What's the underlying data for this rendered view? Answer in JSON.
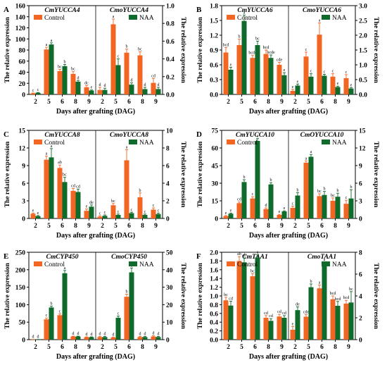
{
  "colors": {
    "control": "#F26522",
    "naa": "#0E6B2B",
    "axis": "#000000"
  },
  "chart_data": [
    {
      "type": "bar",
      "panel_label": "A",
      "gene_left": "CmYUCCA4",
      "gene_right": "CmoYUCCA4",
      "xlabel": "Days after grafting (DAG)",
      "ylabel": "The relative expression",
      "ylabel_right": "The relative expression",
      "legend": [
        "Control",
        "NAA"
      ],
      "categories": [
        "2",
        "5",
        "6",
        "8",
        "9"
      ],
      "ylim_left": [
        0,
        160
      ],
      "yticks_left": [
        "0",
        "20",
        "40",
        "60",
        "80",
        "100",
        "120",
        "140",
        "160"
      ],
      "ylim_right": [
        0,
        1.0
      ],
      "yticks_right": [
        "0.0",
        "0.2",
        "0.4",
        "0.6",
        "0.8",
        "1.0"
      ],
      "series": [
        {
          "name": "Control",
          "left": [
            2,
            81,
            42,
            37,
            13
          ],
          "left_err": [
            0.5,
            4,
            3,
            4,
            3
          ],
          "left_sig": [
            "c",
            "a",
            "bc",
            "bc",
            "dc"
          ],
          "right": [
            0.05,
            0.79,
            0.47,
            0.44,
            0.13
          ],
          "right_err": [
            0.03,
            0.06,
            0.04,
            0.04,
            0.05
          ],
          "right_sig": [
            "d",
            "a",
            "b",
            "bc",
            "cd"
          ]
        },
        {
          "name": "NAA",
          "left": [
            3,
            90,
            51,
            23,
            7
          ],
          "left_err": [
            0.5,
            3,
            3,
            2,
            1
          ],
          "left_sig": [
            "c",
            "a",
            "b",
            "d",
            "e"
          ],
          "right": [
            0.05,
            0.33,
            0.11,
            0.06,
            0.06
          ],
          "right_err": [
            0.02,
            0.07,
            0.02,
            0.02,
            0.02
          ],
          "right_sig": [
            "d",
            "c",
            "d",
            "d",
            "d"
          ]
        }
      ]
    },
    {
      "type": "bar",
      "panel_label": "B",
      "gene_left": "CmYUCCA6",
      "gene_right": "CmoYUCCA6",
      "xlabel": "Days after grafting (DAG)",
      "ylabel": "The relative expression",
      "ylabel_right": "The relative expression",
      "legend": [
        "Control",
        "NAA"
      ],
      "categories": [
        "2",
        "5",
        "6",
        "8",
        "9"
      ],
      "ylim_left": [
        0,
        1.8
      ],
      "yticks_left": [
        "0.0",
        "0.3",
        "0.6",
        "0.9",
        "1.2",
        "1.5",
        "1.8"
      ],
      "ylim_right": [
        0,
        3.0
      ],
      "yticks_right": [
        "0.0",
        "0.5",
        "1.0",
        "1.5",
        "2.0",
        "2.5",
        "3.0"
      ],
      "series": [
        {
          "name": "Control",
          "left": [
            0.85,
            1.0,
            0.74,
            0.82,
            0.6
          ],
          "left_err": [
            0.1,
            0.12,
            0.05,
            0.08,
            0.05
          ],
          "left_sig": [
            "bcd",
            "b",
            "bcde",
            "bcd",
            "cde"
          ],
          "right": [
            0.12,
            1.28,
            2.02,
            0.6,
            0.55
          ],
          "right_err": [
            0.05,
            0.15,
            0.4,
            0.1,
            0.12
          ],
          "right_sig": [
            "e",
            "c",
            "a",
            "c",
            "c"
          ]
        },
        {
          "name": "NAA",
          "left": [
            0.5,
            1.49,
            1.0,
            0.74,
            0.39
          ],
          "left_err": [
            0.05,
            0.12,
            0.08,
            0.06,
            0.05
          ],
          "left_sig": [
            "e",
            "a",
            "bc",
            "bcde",
            "e"
          ],
          "right": [
            0.3,
            0.6,
            0.63,
            0.25,
            0.2
          ],
          "right_err": [
            0.05,
            0.1,
            0.05,
            0.03,
            0.03
          ],
          "right_sig": [
            "e",
            "c",
            "c",
            "e",
            "e"
          ]
        }
      ]
    },
    {
      "type": "bar",
      "panel_label": "C",
      "gene_left": "CmYUCCA8",
      "gene_right": "CmoYUCCA8",
      "xlabel": "Days after grafting (DAG)",
      "ylabel": "The relative expression",
      "ylabel_right": "The relative expression",
      "legend": [
        "Control",
        "NAA"
      ],
      "categories": [
        "2",
        "5",
        "6",
        "8",
        "9"
      ],
      "ylim_left": [
        0,
        15
      ],
      "yticks_left": [
        "0",
        "3",
        "6",
        "9",
        "12",
        "15"
      ],
      "ylim_right": [
        0,
        10
      ],
      "yticks_right": [
        "0",
        "2",
        "4",
        "6",
        "8",
        "10"
      ],
      "series": [
        {
          "name": "Control",
          "left": [
            0.8,
            10,
            8.6,
            4.7,
            1.3
          ],
          "left_err": [
            0.1,
            0.6,
            0.5,
            0.4,
            0.3
          ],
          "left_sig": [
            "e",
            "a",
            "ab",
            "cd",
            "e"
          ],
          "right": [
            0.2,
            1.5,
            6.6,
            2.4,
            1.0
          ],
          "right_err": [
            0.1,
            0.2,
            1.2,
            0.5,
            0.2
          ],
          "right_sig": [
            "c",
            "bc",
            "a",
            "b",
            "c"
          ]
        },
        {
          "name": "NAA",
          "left": [
            0.4,
            10.4,
            6.2,
            4.5,
            2.0
          ],
          "left_err": [
            0.1,
            1.5,
            0.8,
            0.5,
            0.3
          ],
          "left_sig": [
            "e",
            "a",
            "bc",
            "cd",
            "de"
          ],
          "right": [
            0.3,
            0.4,
            0.6,
            0.4,
            0.5
          ],
          "right_err": [
            0.1,
            0.1,
            0.1,
            0.1,
            0.1
          ],
          "right_sig": [
            "c",
            "c",
            "c",
            "c",
            "c"
          ]
        }
      ]
    },
    {
      "type": "bar",
      "panel_label": "D",
      "gene_left": "CmYUCCA10",
      "gene_right": "CmOYUCCA10",
      "xlabel": "Days after grafting (DAG)",
      "ylabel": "The relative expression",
      "ylabel_right": "The relative expression",
      "legend": [
        "Control",
        "NAA"
      ],
      "categories": [
        "2",
        "5",
        "6",
        "8",
        "9"
      ],
      "ylim_left": [
        0,
        75
      ],
      "yticks_left": [
        "0",
        "15",
        "30",
        "45",
        "60",
        "75"
      ],
      "ylim_right": [
        0,
        15
      ],
      "yticks_right": [
        "0",
        "3",
        "6",
        "9",
        "12",
        "15"
      ],
      "series": [
        {
          "name": "Control",
          "left": [
            2,
            13,
            17,
            8,
            3
          ],
          "left_err": [
            0.5,
            1,
            1.5,
            1,
            0.5
          ],
          "left_sig": [
            "e",
            "cd",
            "c",
            "d",
            "e"
          ],
          "right": [
            1.8,
            9.5,
            3.8,
            3.0,
            2.5
          ],
          "right_err": [
            0.3,
            0.3,
            0.4,
            0.5,
            0.6
          ],
          "right_sig": [
            "c",
            "a",
            "bc",
            "bc",
            "c"
          ]
        },
        {
          "name": "NAA",
          "left": [
            4,
            31,
            66,
            29,
            6
          ],
          "left_err": [
            0.5,
            2,
            2,
            1.5,
            0.5
          ],
          "left_sig": [
            "e",
            "b",
            "a",
            "b",
            "e"
          ],
          "right": [
            3.9,
            10.5,
            4.0,
            3.7,
            3.4
          ],
          "right_err": [
            0.5,
            0.4,
            0.6,
            0.6,
            1.5
          ],
          "right_sig": [
            "b",
            "a",
            "b",
            "b",
            "b"
          ]
        }
      ]
    },
    {
      "type": "bar",
      "panel_label": "E",
      "gene_left": "CmCYP450",
      "gene_right": "CmoCYP450",
      "xlabel": "Days after grafting (DAG)",
      "ylabel": "The relative expression",
      "ylabel_right": "The relative expression",
      "legend": [
        "Control",
        "NAA"
      ],
      "categories": [
        "2",
        "5",
        "6",
        "8",
        "9"
      ],
      "ylim_left": [
        0,
        250
      ],
      "yticks_left": [
        "0",
        "50",
        "100",
        "150",
        "200",
        "250"
      ],
      "ylim_right": [
        0,
        50
      ],
      "yticks_right": [
        "0",
        "10",
        "20",
        "30",
        "40",
        "50"
      ],
      "series": [
        {
          "name": "Control",
          "left": [
            0.5,
            58,
            70,
            9,
            7
          ],
          "left_err": [
            0.2,
            4,
            4,
            1,
            1
          ],
          "left_sig": [
            "d",
            "c",
            "c",
            "d",
            "d"
          ],
          "right": [
            1.5,
            1.2,
            24.5,
            1.5,
            1.8
          ],
          "right_err": [
            0.3,
            0.3,
            1.5,
            0.3,
            0.4
          ],
          "right_sig": [
            "d",
            "d",
            "b",
            "d",
            "d"
          ]
        },
        {
          "name": "NAA",
          "left": [
            0.5,
            92,
            190,
            9,
            7
          ],
          "left_err": [
            0.2,
            4,
            8,
            1,
            1
          ],
          "left_sig": [
            "d",
            "b",
            "a",
            "d",
            "d"
          ],
          "right": [
            1.5,
            12.5,
            38.5,
            1.5,
            1.5
          ],
          "right_err": [
            0.3,
            1,
            2.5,
            0.3,
            0.3
          ],
          "right_sig": [
            "d",
            "c",
            "a",
            "d",
            "d"
          ]
        }
      ]
    },
    {
      "type": "bar",
      "panel_label": "F",
      "gene_left": "CmTAA1",
      "gene_right": "CmoTAA1",
      "xlabel": "Days after grafting (DAG)",
      "ylabel": "The relative expression",
      "ylabel_right": "The relative expression",
      "legend": [
        "Control",
        "NAA"
      ],
      "categories": [
        "2",
        "5",
        "6",
        "8",
        "9"
      ],
      "ylim_left": [
        0,
        2.0
      ],
      "yticks_left": [
        "0.0",
        "0.2",
        "0.4",
        "0.6",
        "0.8",
        "1.0",
        "1.2",
        "1.4",
        "1.6",
        "1.8",
        "2.0"
      ],
      "ylim_right": [
        0,
        8
      ],
      "yticks_right": [
        "0",
        "2",
        "4",
        "6",
        "8"
      ],
      "series": [
        {
          "name": "Control",
          "left": [
            0.9,
            1.8,
            1.45,
            0.5,
            0.53
          ],
          "left_err": [
            0.07,
            0.1,
            0.06,
            0.05,
            0.05
          ],
          "left_sig": [
            "bc",
            "ab",
            "bc",
            "cd",
            "cd"
          ],
          "right": [
            0.9,
            2.1,
            4.7,
            3.7,
            3.3
          ],
          "right_err": [
            0.3,
            0.2,
            0.3,
            0.3,
            0.3
          ],
          "right_sig": [
            "e",
            "cde",
            "a",
            "bcd",
            "bcd"
          ]
        },
        {
          "name": "NAA",
          "left": [
            0.78,
            1.77,
            1.88,
            0.43,
            0.5
          ],
          "left_err": [
            0.1,
            0.1,
            0.06,
            0.05,
            0.05
          ],
          "left_sig": [
            "cd",
            "ab",
            "a",
            "cd",
            "cd"
          ],
          "right": [
            2.7,
            4.8,
            6.8,
            3.1,
            3.4
          ],
          "right_err": [
            0.3,
            0.3,
            0.3,
            0.4,
            1.0
          ],
          "right_sig": [
            "de",
            "b",
            "a",
            "bcd",
            "bc"
          ]
        }
      ]
    }
  ]
}
